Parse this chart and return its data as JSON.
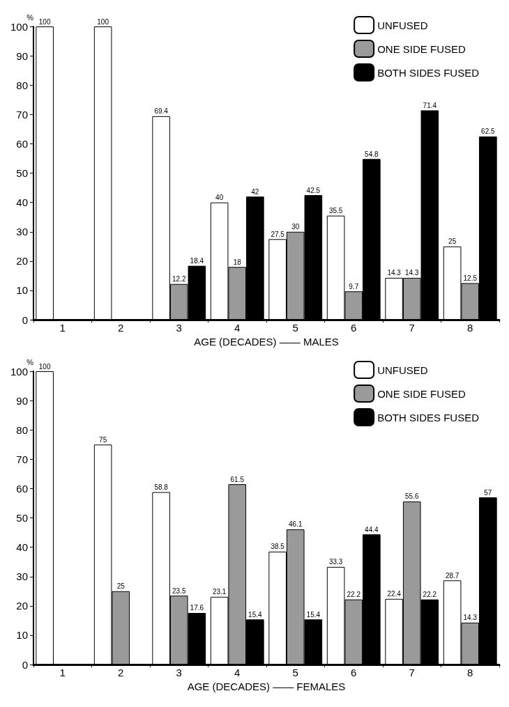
{
  "chart_data": [
    {
      "type": "bar",
      "categories": [
        "1",
        "2",
        "3",
        "4",
        "5",
        "6",
        "7",
        "8"
      ],
      "xlabel": "AGE (DECADES) —— MALES",
      "ylabel": "%",
      "ylim": [
        0,
        100
      ],
      "yticks": [
        0,
        10,
        20,
        30,
        40,
        50,
        60,
        70,
        80,
        90,
        100
      ],
      "grid": false,
      "legend": "top right",
      "data_labels": true,
      "series": [
        {
          "name": "UNFUSED",
          "color": "#ffffff",
          "values": [
            100,
            100,
            69.4,
            40,
            27.5,
            35.5,
            14.3,
            25
          ]
        },
        {
          "name": "ONE SIDE FUSED",
          "color": "#9a9a9a",
          "values": [
            null,
            null,
            12.2,
            18,
            30,
            9.7,
            14.3,
            12.5
          ]
        },
        {
          "name": "BOTH SIDES FUSED",
          "color": "#000000",
          "values": [
            null,
            null,
            18.4,
            42,
            42.5,
            54.8,
            71.4,
            62.5
          ]
        }
      ]
    },
    {
      "type": "bar",
      "categories": [
        "1",
        "2",
        "3",
        "4",
        "5",
        "6",
        "7",
        "8"
      ],
      "xlabel": "AGE (DECADES) —— FEMALES",
      "ylabel": "%",
      "ylim": [
        0,
        100
      ],
      "yticks": [
        0,
        10,
        20,
        30,
        40,
        50,
        60,
        70,
        80,
        90,
        100
      ],
      "grid": false,
      "legend": "top right",
      "data_labels": true,
      "series": [
        {
          "name": "UNFUSED",
          "color": "#ffffff",
          "values": [
            100,
            75,
            58.8,
            23.1,
            38.5,
            33.3,
            22.4,
            28.7
          ]
        },
        {
          "name": "ONE SIDE FUSED",
          "color": "#9a9a9a",
          "values": [
            null,
            25,
            23.5,
            61.5,
            46.1,
            22.2,
            55.6,
            14.3
          ]
        },
        {
          "name": "BOTH SIDES FUSED",
          "color": "#000000",
          "values": [
            null,
            null,
            17.6,
            15.4,
            15.4,
            44.4,
            22.2,
            57
          ]
        }
      ]
    }
  ]
}
